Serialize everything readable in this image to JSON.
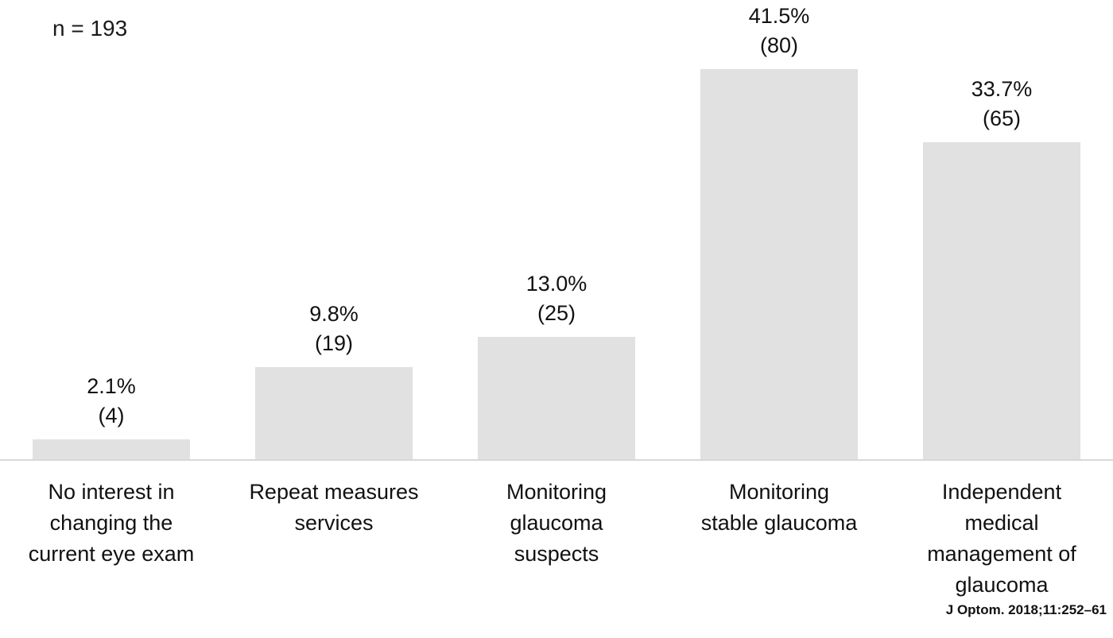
{
  "annotation": {
    "n_label": "n = 193"
  },
  "citation": "J Optom. 2018;11:252–61",
  "chart_data": {
    "type": "bar",
    "title": "",
    "xlabel": "",
    "ylabel": "",
    "annotation": "n = 193",
    "grid": false,
    "legend": "none",
    "ylim": [
      0,
      45
    ],
    "bar_color": "#e1e1e1",
    "categories": [
      "No interest in changing the current eye exam",
      "Repeat measures services",
      "Monitoring glaucoma suspects",
      "Monitoring stable glaucoma",
      "Independent medical management of glaucoma"
    ],
    "category_labels": [
      "No interest in\nchanging the\ncurrent eye exam",
      "Repeat measures\nservices",
      "Monitoring\nglaucoma\nsuspects",
      "Monitoring\nstable glaucoma",
      "Independent\nmedical\nmanagement of\nglaucoma"
    ],
    "values": [
      2.1,
      9.8,
      13.0,
      41.5,
      33.7
    ],
    "counts": [
      4,
      19,
      25,
      80,
      65
    ],
    "value_labels": [
      "2.1%",
      "9.8%",
      "13.0%",
      "41.5%",
      "33.7%"
    ],
    "count_labels": [
      "(4)",
      "(19)",
      "(25)",
      "(80)",
      "(65)"
    ]
  }
}
